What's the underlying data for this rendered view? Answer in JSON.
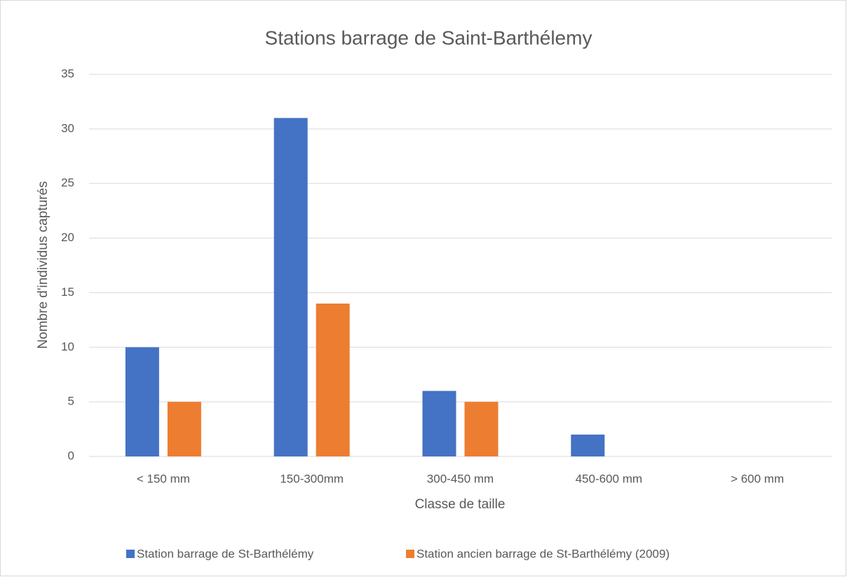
{
  "chart_data": {
    "type": "bar",
    "title": "Stations barrage de Saint-Barthélemy",
    "x_label": "Classe de taille",
    "y_label": "Nombre d'individus capturés",
    "categories": [
      "< 150 mm",
      "150-300mm",
      "300-450 mm",
      "450-600 mm",
      "> 600 mm"
    ],
    "series": [
      {
        "name": "Station barrage de St-Barthélémy",
        "color": "#4472c4",
        "values": [
          10,
          31,
          6,
          2,
          0
        ]
      },
      {
        "name": "Station ancien barrage de St-Barthélémy (2009)",
        "color": "#ed7d31",
        "values": [
          5,
          14,
          5,
          0,
          0
        ]
      }
    ],
    "ylim": [
      0,
      35
    ],
    "yticks": [
      0,
      5,
      10,
      15,
      20,
      25,
      30,
      35
    ],
    "grid": true,
    "legend": "bottom"
  }
}
